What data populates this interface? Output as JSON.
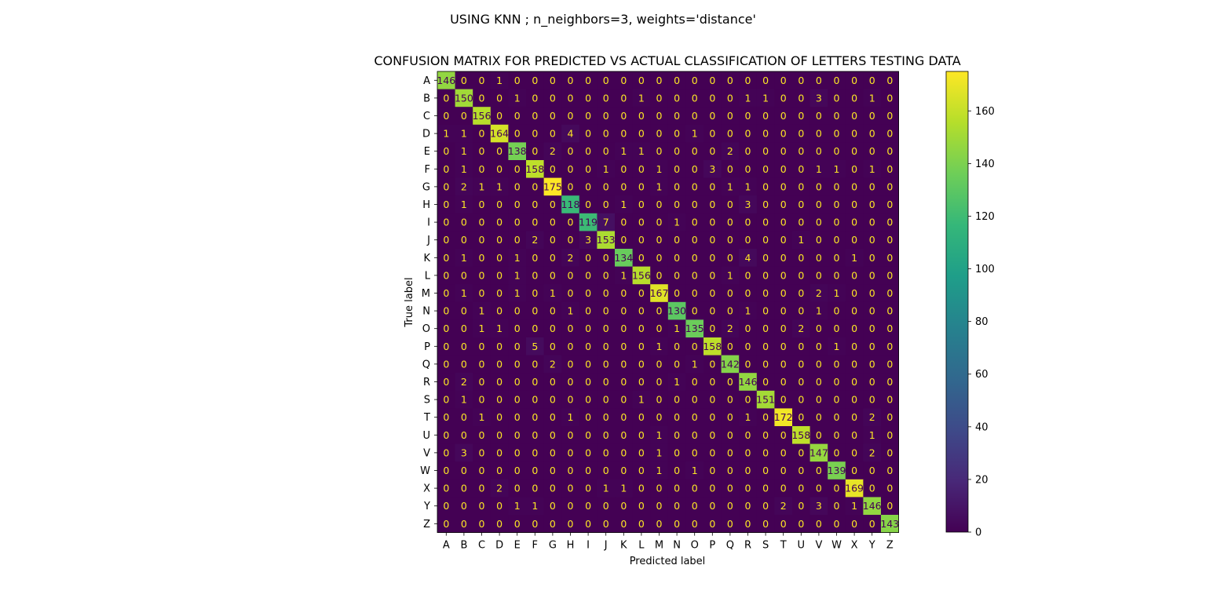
{
  "suptitle": "USING KNN ; n_neighbors=3, weights='distance'",
  "chart_data": {
    "type": "heatmap",
    "title": "CONFUSION MATRIX FOR PREDICTED VS ACTUAL CLASSIFICATION OF LETTERS TESTING DATA",
    "xlabel": "Predicted label",
    "ylabel": "True label",
    "x_categories": [
      "A",
      "B",
      "C",
      "D",
      "E",
      "F",
      "G",
      "H",
      "I",
      "J",
      "K",
      "L",
      "M",
      "N",
      "O",
      "P",
      "Q",
      "R",
      "S",
      "T",
      "U",
      "V",
      "W",
      "X",
      "Y",
      "Z"
    ],
    "y_categories": [
      "A",
      "B",
      "C",
      "D",
      "E",
      "F",
      "G",
      "H",
      "I",
      "J",
      "K",
      "L",
      "M",
      "N",
      "O",
      "P",
      "Q",
      "R",
      "S",
      "T",
      "U",
      "V",
      "W",
      "X",
      "Y",
      "Z"
    ],
    "matrix": [
      [
        146,
        0,
        0,
        1,
        0,
        0,
        0,
        0,
        0,
        0,
        0,
        0,
        0,
        0,
        0,
        0,
        0,
        0,
        0,
        0,
        0,
        0,
        0,
        0,
        0,
        0
      ],
      [
        0,
        150,
        0,
        0,
        1,
        0,
        0,
        0,
        0,
        0,
        0,
        1,
        0,
        0,
        0,
        0,
        0,
        1,
        1,
        0,
        0,
        3,
        0,
        0,
        1,
        0
      ],
      [
        0,
        0,
        156,
        0,
        0,
        0,
        0,
        0,
        0,
        0,
        0,
        0,
        0,
        0,
        0,
        0,
        0,
        0,
        0,
        0,
        0,
        0,
        0,
        0,
        0,
        0
      ],
      [
        1,
        1,
        0,
        164,
        0,
        0,
        0,
        4,
        0,
        0,
        0,
        0,
        0,
        0,
        1,
        0,
        0,
        0,
        0,
        0,
        0,
        0,
        0,
        0,
        0,
        0
      ],
      [
        0,
        1,
        0,
        0,
        138,
        0,
        2,
        0,
        0,
        0,
        1,
        1,
        0,
        0,
        0,
        0,
        2,
        0,
        0,
        0,
        0,
        0,
        0,
        0,
        0,
        0
      ],
      [
        0,
        1,
        0,
        0,
        0,
        158,
        0,
        0,
        0,
        1,
        0,
        0,
        1,
        0,
        0,
        3,
        0,
        0,
        0,
        0,
        0,
        1,
        1,
        0,
        1,
        0
      ],
      [
        0,
        2,
        1,
        1,
        0,
        0,
        175,
        0,
        0,
        0,
        0,
        0,
        1,
        0,
        0,
        0,
        1,
        1,
        0,
        0,
        0,
        0,
        0,
        0,
        0,
        0
      ],
      [
        0,
        1,
        0,
        0,
        0,
        0,
        0,
        118,
        0,
        0,
        1,
        0,
        0,
        0,
        0,
        0,
        0,
        3,
        0,
        0,
        0,
        0,
        0,
        0,
        0,
        0
      ],
      [
        0,
        0,
        0,
        0,
        0,
        0,
        0,
        0,
        119,
        7,
        0,
        0,
        0,
        1,
        0,
        0,
        0,
        0,
        0,
        0,
        0,
        0,
        0,
        0,
        0,
        0
      ],
      [
        0,
        0,
        0,
        0,
        0,
        2,
        0,
        0,
        3,
        153,
        0,
        0,
        0,
        0,
        0,
        0,
        0,
        0,
        0,
        0,
        1,
        0,
        0,
        0,
        0,
        0
      ],
      [
        0,
        1,
        0,
        0,
        1,
        0,
        0,
        2,
        0,
        0,
        134,
        0,
        0,
        0,
        0,
        0,
        0,
        4,
        0,
        0,
        0,
        0,
        0,
        1,
        0,
        0
      ],
      [
        0,
        0,
        0,
        0,
        1,
        0,
        0,
        0,
        0,
        0,
        1,
        156,
        0,
        0,
        0,
        0,
        1,
        0,
        0,
        0,
        0,
        0,
        0,
        0,
        0,
        0
      ],
      [
        0,
        1,
        0,
        0,
        1,
        0,
        1,
        0,
        0,
        0,
        0,
        0,
        167,
        0,
        0,
        0,
        0,
        0,
        0,
        0,
        0,
        2,
        1,
        0,
        0,
        0
      ],
      [
        0,
        0,
        1,
        0,
        0,
        0,
        0,
        1,
        0,
        0,
        0,
        0,
        0,
        130,
        0,
        0,
        0,
        1,
        0,
        0,
        0,
        1,
        0,
        0,
        0,
        0
      ],
      [
        0,
        0,
        1,
        1,
        0,
        0,
        0,
        0,
        0,
        0,
        0,
        0,
        0,
        1,
        135,
        0,
        2,
        0,
        0,
        0,
        2,
        0,
        0,
        0,
        0,
        0
      ],
      [
        0,
        0,
        0,
        0,
        0,
        5,
        0,
        0,
        0,
        0,
        0,
        0,
        1,
        0,
        0,
        158,
        0,
        0,
        0,
        0,
        0,
        0,
        1,
        0,
        0,
        0
      ],
      [
        0,
        0,
        0,
        0,
        0,
        0,
        2,
        0,
        0,
        0,
        0,
        0,
        0,
        0,
        1,
        0,
        142,
        0,
        0,
        0,
        0,
        0,
        0,
        0,
        0,
        0
      ],
      [
        0,
        2,
        0,
        0,
        0,
        0,
        0,
        0,
        0,
        0,
        0,
        0,
        0,
        1,
        0,
        0,
        0,
        146,
        0,
        0,
        0,
        0,
        0,
        0,
        0,
        0
      ],
      [
        0,
        1,
        0,
        0,
        0,
        0,
        0,
        0,
        0,
        0,
        0,
        1,
        0,
        0,
        0,
        0,
        0,
        0,
        151,
        0,
        0,
        0,
        0,
        0,
        0,
        0
      ],
      [
        0,
        0,
        1,
        0,
        0,
        0,
        0,
        1,
        0,
        0,
        0,
        0,
        0,
        0,
        0,
        0,
        0,
        1,
        0,
        172,
        0,
        0,
        0,
        0,
        2,
        0
      ],
      [
        0,
        0,
        0,
        0,
        0,
        0,
        0,
        0,
        0,
        0,
        0,
        0,
        1,
        0,
        0,
        0,
        0,
        0,
        0,
        0,
        158,
        0,
        0,
        0,
        1,
        0
      ],
      [
        0,
        3,
        0,
        0,
        0,
        0,
        0,
        0,
        0,
        0,
        0,
        0,
        1,
        0,
        0,
        0,
        0,
        0,
        0,
        0,
        0,
        147,
        0,
        0,
        2,
        0
      ],
      [
        0,
        0,
        0,
        0,
        0,
        0,
        0,
        0,
        0,
        0,
        0,
        0,
        1,
        0,
        1,
        0,
        0,
        0,
        0,
        0,
        0,
        0,
        139,
        0,
        0,
        0
      ],
      [
        0,
        0,
        0,
        2,
        0,
        0,
        0,
        0,
        0,
        1,
        1,
        0,
        0,
        0,
        0,
        0,
        0,
        0,
        0,
        0,
        0,
        0,
        0,
        169,
        0,
        0
      ],
      [
        0,
        0,
        0,
        0,
        1,
        1,
        0,
        0,
        0,
        0,
        0,
        0,
        0,
        0,
        0,
        0,
        0,
        0,
        0,
        2,
        0,
        3,
        0,
        1,
        146,
        0
      ],
      [
        0,
        0,
        0,
        0,
        0,
        0,
        0,
        0,
        0,
        0,
        0,
        0,
        0,
        0,
        0,
        0,
        0,
        0,
        0,
        0,
        0,
        0,
        0,
        0,
        0,
        143
      ]
    ],
    "colormap": "viridis",
    "colorbar": {
      "range": [
        0,
        175
      ],
      "ticks": [
        0,
        20,
        40,
        60,
        80,
        100,
        120,
        140,
        160
      ]
    },
    "text_colors": {
      "low": "#fde725",
      "high": "#440154"
    }
  }
}
